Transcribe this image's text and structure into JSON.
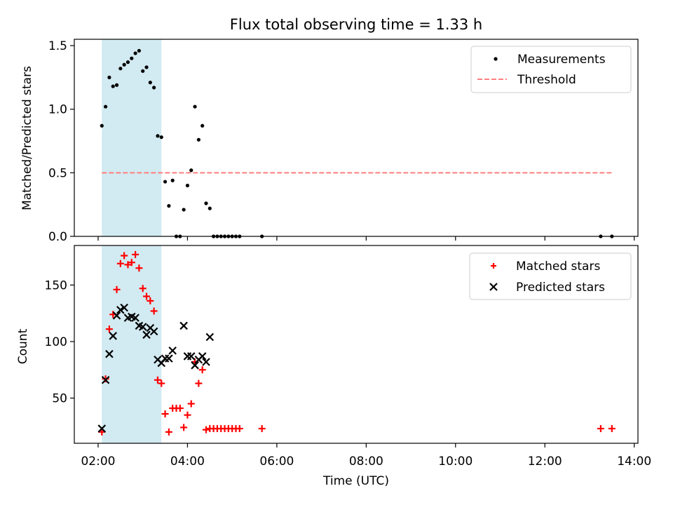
{
  "chart_data": [
    {
      "type": "scatter",
      "title": "Flux total observing time = 1.33 h",
      "xlabel": "",
      "ylabel": "Matched/Predicted stars",
      "xlim": [
        "01:28",
        "14:05"
      ],
      "ylim": [
        0,
        1.55
      ],
      "yticks": [
        0.0,
        0.5,
        1.0,
        1.5
      ],
      "ytick_labels": [
        "0.0",
        "0.5",
        "1.0",
        "1.5"
      ],
      "grid": false,
      "legend_position": "top-right",
      "shaded_span": {
        "x_start": "02:05",
        "x_end": "03:25",
        "color": "#add8e6"
      },
      "series": [
        {
          "name": "Measurements",
          "kind": "scatter",
          "color": "#000000",
          "points": [
            [
              "02:05",
              0.87
            ],
            [
              "02:10",
              1.02
            ],
            [
              "02:15",
              1.25
            ],
            [
              "02:20",
              1.18
            ],
            [
              "02:25",
              1.19
            ],
            [
              "02:30",
              1.32
            ],
            [
              "02:35",
              1.35
            ],
            [
              "02:40",
              1.37
            ],
            [
              "02:45",
              1.4
            ],
            [
              "02:50",
              1.44
            ],
            [
              "02:55",
              1.46
            ],
            [
              "03:00",
              1.3
            ],
            [
              "03:05",
              1.33
            ],
            [
              "03:10",
              1.21
            ],
            [
              "03:15",
              1.17
            ],
            [
              "03:20",
              0.79
            ],
            [
              "03:25",
              0.78
            ],
            [
              "03:30",
              0.43
            ],
            [
              "03:35",
              0.24
            ],
            [
              "03:40",
              0.44
            ],
            [
              "03:45",
              0.0
            ],
            [
              "03:50",
              0.0
            ],
            [
              "03:55",
              0.21
            ],
            [
              "04:00",
              0.4
            ],
            [
              "04:05",
              0.52
            ],
            [
              "04:10",
              1.02
            ],
            [
              "04:15",
              0.76
            ],
            [
              "04:20",
              0.87
            ],
            [
              "04:25",
              0.26
            ],
            [
              "04:30",
              0.22
            ],
            [
              "04:35",
              0.0
            ],
            [
              "04:40",
              0.0
            ],
            [
              "04:45",
              0.0
            ],
            [
              "04:50",
              0.0
            ],
            [
              "04:55",
              0.0
            ],
            [
              "05:00",
              0.0
            ],
            [
              "05:05",
              0.0
            ],
            [
              "05:10",
              0.0
            ],
            [
              "05:40",
              0.0
            ],
            [
              "13:15",
              0.0
            ],
            [
              "13:30",
              0.0
            ]
          ]
        },
        {
          "name": "Threshold",
          "kind": "dashed-line",
          "color": "#ff7f7f",
          "points": [
            [
              "02:05",
              0.5
            ],
            [
              "13:30",
              0.5
            ]
          ]
        }
      ]
    },
    {
      "type": "scatter",
      "title": "",
      "xlabel": "Time (UTC)",
      "ylabel": "Count",
      "xlim": [
        "01:28",
        "14:05"
      ],
      "ylim": [
        10,
        185
      ],
      "yticks": [
        50,
        100,
        150
      ],
      "ytick_labels": [
        "50",
        "100",
        "150"
      ],
      "xticks": [
        "02:00",
        "04:00",
        "06:00",
        "08:00",
        "10:00",
        "12:00",
        "14:00"
      ],
      "grid": false,
      "legend_position": "top-right",
      "shaded_span": {
        "x_start": "02:05",
        "x_end": "03:25",
        "color": "#add8e6"
      },
      "series": [
        {
          "name": "Matched stars",
          "kind": "plus-marker",
          "color": "#ff0000",
          "points": [
            [
              "02:05",
              20
            ],
            [
              "02:10",
              67
            ],
            [
              "02:15",
              111
            ],
            [
              "02:20",
              124
            ],
            [
              "02:25",
              146
            ],
            [
              "02:30",
              169
            ],
            [
              "02:35",
              176
            ],
            [
              "02:40",
              168
            ],
            [
              "02:45",
              170
            ],
            [
              "02:50",
              177
            ],
            [
              "02:55",
              165
            ],
            [
              "03:00",
              147
            ],
            [
              "03:05",
              140
            ],
            [
              "03:10",
              136
            ],
            [
              "03:15",
              127
            ],
            [
              "03:20",
              66
            ],
            [
              "03:25",
              63
            ],
            [
              "03:30",
              36
            ],
            [
              "03:35",
              20
            ],
            [
              "03:40",
              41
            ],
            [
              "03:45",
              41
            ],
            [
              "03:50",
              41
            ],
            [
              "03:55",
              24
            ],
            [
              "04:00",
              35
            ],
            [
              "04:05",
              45
            ],
            [
              "04:10",
              82
            ],
            [
              "04:15",
              63
            ],
            [
              "04:20",
              75
            ],
            [
              "04:25",
              22
            ],
            [
              "04:30",
              23
            ],
            [
              "04:35",
              23
            ],
            [
              "04:40",
              23
            ],
            [
              "04:45",
              23
            ],
            [
              "04:50",
              23
            ],
            [
              "04:55",
              23
            ],
            [
              "05:00",
              23
            ],
            [
              "05:05",
              23
            ],
            [
              "05:10",
              23
            ],
            [
              "05:40",
              23
            ],
            [
              "13:15",
              23
            ],
            [
              "13:30",
              23
            ]
          ]
        },
        {
          "name": "Predicted stars",
          "kind": "x-marker",
          "color": "#000000",
          "points": [
            [
              "02:05",
              23
            ],
            [
              "02:10",
              66
            ],
            [
              "02:15",
              89
            ],
            [
              "02:20",
              105
            ],
            [
              "02:25",
              123
            ],
            [
              "02:30",
              128
            ],
            [
              "02:35",
              130
            ],
            [
              "02:40",
              121
            ],
            [
              "02:45",
              122
            ],
            [
              "02:50",
              121
            ],
            [
              "02:55",
              114
            ],
            [
              "03:00",
              113
            ],
            [
              "03:05",
              106
            ],
            [
              "03:10",
              112
            ],
            [
              "03:15",
              109
            ],
            [
              "03:20",
              84
            ],
            [
              "03:25",
              81
            ],
            [
              "03:30",
              85
            ],
            [
              "03:35",
              85
            ],
            [
              "03:40",
              92
            ],
            [
              "03:55",
              114
            ],
            [
              "04:00",
              87
            ],
            [
              "04:05",
              87
            ],
            [
              "04:10",
              79
            ],
            [
              "04:15",
              84
            ],
            [
              "04:20",
              87
            ],
            [
              "04:25",
              82
            ],
            [
              "04:30",
              104
            ]
          ]
        }
      ]
    }
  ]
}
